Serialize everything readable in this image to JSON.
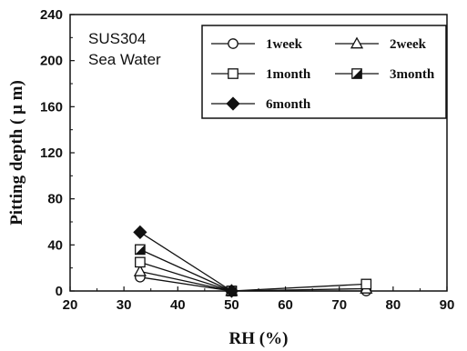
{
  "chart_data": {
    "type": "line",
    "title": "",
    "xlabel": "RH (%)",
    "ylabel": "Pitting depth ( μ m)",
    "xlim": [
      20,
      90
    ],
    "ylim": [
      0,
      240
    ],
    "x_ticks": [
      20,
      30,
      40,
      50,
      60,
      70,
      80,
      90
    ],
    "y_ticks": [
      0,
      40,
      80,
      120,
      160,
      200,
      240
    ],
    "annotations": [
      "SUS304",
      "Sea Water"
    ],
    "legend_position": "top-right",
    "grid": false,
    "series": [
      {
        "name": "1week",
        "marker": "circle-open",
        "x": [
          33,
          50,
          75
        ],
        "y": [
          12,
          0,
          0
        ]
      },
      {
        "name": "2week",
        "marker": "triangle-open",
        "x": [
          33,
          50,
          75
        ],
        "y": [
          17,
          0,
          2
        ]
      },
      {
        "name": "1month",
        "marker": "square-open",
        "x": [
          33,
          50,
          75
        ],
        "y": [
          25,
          0,
          6
        ]
      },
      {
        "name": "3month",
        "marker": "square-half",
        "x": [
          33,
          50
        ],
        "y": [
          36,
          0
        ]
      },
      {
        "name": "6month",
        "marker": "diamond-filled",
        "x": [
          33,
          50
        ],
        "y": [
          51,
          0
        ]
      }
    ]
  }
}
